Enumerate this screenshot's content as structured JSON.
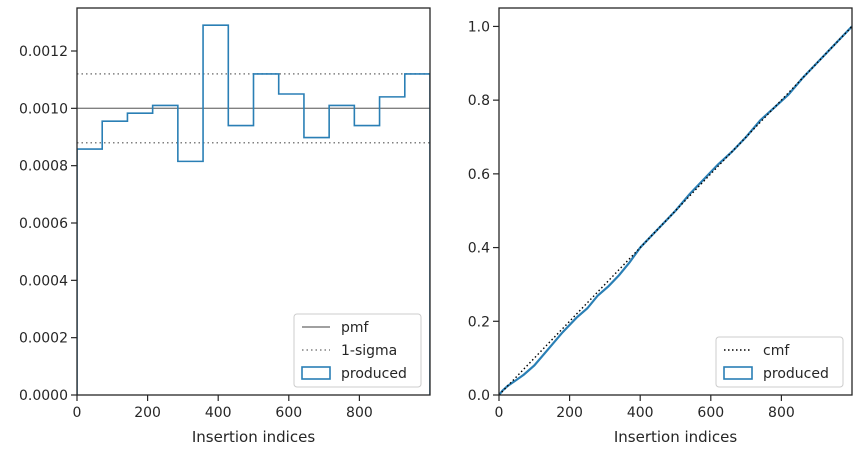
{
  "colors": {
    "produced": "#2a7fb5",
    "pmf": "#808080",
    "sigma": "#808080",
    "cmf": "#000000",
    "axis": "#262626",
    "legend_border": "#cccccc"
  },
  "chart_data": [
    {
      "type": "histogram",
      "xlabel": "Insertion indices",
      "ylabel": "",
      "xlim": [
        0,
        1000
      ],
      "ylim": [
        0,
        0.00135
      ],
      "xticks": [
        0,
        200,
        400,
        600,
        800
      ],
      "yticks": [
        0,
        0.0002,
        0.0004,
        0.0006,
        0.0008,
        0.001,
        0.0012
      ],
      "ytick_labels": [
        "0.0000",
        "0.0002",
        "0.0004",
        "0.0006",
        "0.0008",
        "0.0010",
        "0.0012"
      ],
      "xtick_labels": [
        "0",
        "200",
        "400",
        "600",
        "800"
      ],
      "bin_edges": [
        0,
        71.4,
        142.9,
        214.3,
        285.7,
        357.1,
        428.6,
        500,
        571.4,
        642.9,
        714.3,
        785.7,
        857.1,
        928.6,
        1000
      ],
      "values": [
        0.000858,
        0.000955,
        0.000983,
        0.00101,
        0.000815,
        0.00129,
        0.00094,
        0.00112,
        0.00105,
        0.000898,
        0.00101,
        0.00094,
        0.00104,
        0.00112
      ],
      "pmf": 0.001,
      "sigma_upper": 0.00112,
      "sigma_lower": 0.00088,
      "grid": false,
      "legend_position": "bottom-right",
      "legend": [
        {
          "label": "pmf",
          "style": "solid-line"
        },
        {
          "label": "1-sigma",
          "style": "dotted-line"
        },
        {
          "label": "produced",
          "style": "box"
        }
      ]
    },
    {
      "type": "line",
      "xlabel": "Insertion indices",
      "ylabel": "",
      "xlim": [
        0,
        1000
      ],
      "ylim": [
        0,
        1.05
      ],
      "xticks": [
        0,
        200,
        400,
        600,
        800
      ],
      "yticks": [
        0,
        0.2,
        0.4,
        0.6,
        0.8,
        1.0
      ],
      "ytick_labels": [
        "0.0",
        "0.2",
        "0.4",
        "0.6",
        "0.8",
        "1.0"
      ],
      "xtick_labels": [
        "0",
        "200",
        "400",
        "600",
        "800"
      ],
      "cmf": {
        "x": [
          0,
          1000
        ],
        "y": [
          0,
          1.0
        ]
      },
      "produced": {
        "x": [
          0,
          10,
          25,
          45,
          70,
          100,
          140,
          180,
          220,
          250,
          280,
          310,
          340,
          370,
          400,
          430,
          460,
          500,
          540,
          580,
          620,
          660,
          700,
          740,
          780,
          820,
          860,
          900,
          940,
          980,
          1000
        ],
        "y": [
          0,
          0.012,
          0.025,
          0.038,
          0.055,
          0.08,
          0.125,
          0.17,
          0.21,
          0.235,
          0.27,
          0.295,
          0.325,
          0.36,
          0.4,
          0.43,
          0.46,
          0.5,
          0.545,
          0.585,
          0.625,
          0.66,
          0.7,
          0.745,
          0.78,
          0.815,
          0.86,
          0.9,
          0.94,
          0.98,
          1.0
        ]
      },
      "grid": false,
      "legend_position": "bottom-right",
      "legend": [
        {
          "label": "cmf",
          "style": "dotted-line"
        },
        {
          "label": "produced",
          "style": "box"
        }
      ]
    }
  ]
}
